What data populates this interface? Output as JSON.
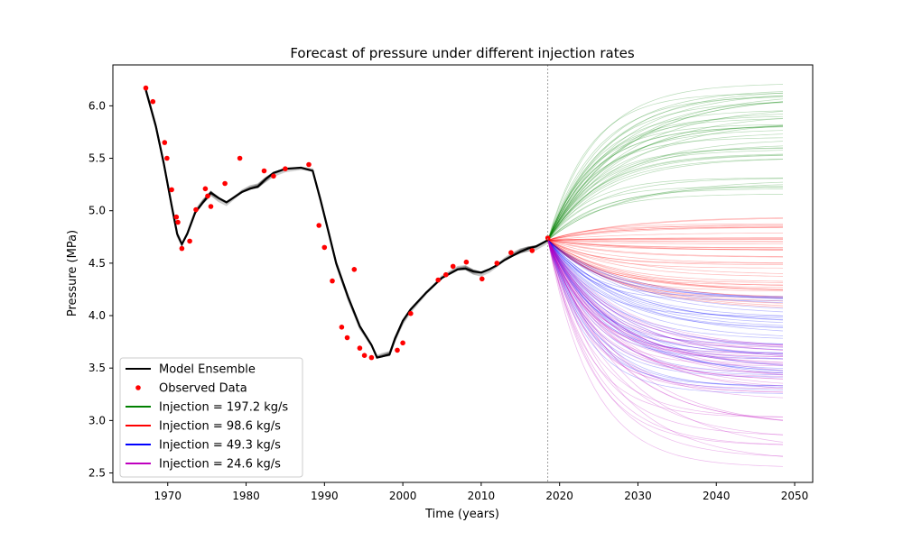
{
  "chart_data": {
    "type": "line",
    "title": "Forecast of pressure under different injection rates",
    "xlabel": "Time (years)",
    "ylabel": "Pressure (MPa)",
    "xlim": [
      1963.0,
      2052.3
    ],
    "ylim": [
      2.41,
      6.39
    ],
    "x_ticks": [
      1970,
      1980,
      1990,
      2000,
      2010,
      2020,
      2030,
      2040,
      2050
    ],
    "y_ticks": [
      2.5,
      3.0,
      3.5,
      4.0,
      4.5,
      5.0,
      5.5,
      6.0
    ],
    "grid": false,
    "legend": {
      "placement": "lower-left"
    },
    "forecast_start": 2018.5,
    "series": [
      {
        "name": "Model Ensemble",
        "color": "#000000",
        "kind": "line",
        "x": [
          1967.2,
          1968.5,
          1969.5,
          1970.5,
          1971.2,
          1971.8,
          1972.5,
          1973.5,
          1974.5,
          1975.5,
          1976.5,
          1977.5,
          1978.5,
          1979.5,
          1980.5,
          1981.5,
          1982.5,
          1983.5,
          1985.0,
          1987.0,
          1988.5,
          1989.5,
          1990.5,
          1991.5,
          1993.0,
          1994.5,
          1996.0,
          1996.7,
          1997.3,
          1998.3,
          1999.0,
          2000.0,
          2001.0,
          2003.0,
          2005.0,
          2007.0,
          2008.0,
          2009.0,
          2010.0,
          2011.0,
          2012.0,
          2013.0,
          2014.0,
          2015.0,
          2016.0,
          2017.0,
          2018.5
        ],
        "y": [
          6.15,
          5.8,
          5.45,
          5.05,
          4.78,
          4.68,
          4.78,
          4.98,
          5.08,
          5.17,
          5.12,
          5.08,
          5.13,
          5.18,
          5.21,
          5.23,
          5.3,
          5.36,
          5.4,
          5.41,
          5.38,
          5.1,
          4.8,
          4.5,
          4.18,
          3.9,
          3.72,
          3.6,
          3.61,
          3.63,
          3.78,
          3.95,
          4.06,
          4.22,
          4.36,
          4.44,
          4.45,
          4.42,
          4.41,
          4.44,
          4.48,
          4.53,
          4.57,
          4.61,
          4.64,
          4.66,
          4.72
        ]
      },
      {
        "name": "Observed Data",
        "color": "#ff0000",
        "kind": "points",
        "x": [
          1967.2,
          1968.1,
          1969.6,
          1969.9,
          1970.5,
          1971.1,
          1971.3,
          1971.8,
          1972.8,
          1973.6,
          1974.8,
          1975.1,
          1975.5,
          1977.3,
          1979.2,
          1982.3,
          1983.5,
          1985.0,
          1988.0,
          1989.3,
          1990.0,
          1991.0,
          1992.2,
          1992.9,
          1993.8,
          1994.5,
          1995.1,
          1996.0,
          1999.3,
          2000.0,
          2001.0,
          2004.5,
          2005.5,
          2006.4,
          2008.1,
          2010.1,
          2012.0,
          2013.8,
          2016.5,
          2018.5
        ],
        "y": [
          6.17,
          6.04,
          5.65,
          5.5,
          5.2,
          4.94,
          4.89,
          4.64,
          4.71,
          5.01,
          5.21,
          5.14,
          5.04,
          5.26,
          5.5,
          5.38,
          5.33,
          5.4,
          5.44,
          4.86,
          4.65,
          4.33,
          3.89,
          3.79,
          4.44,
          3.69,
          3.62,
          3.6,
          3.67,
          3.74,
          4.02,
          4.34,
          4.39,
          4.47,
          4.51,
          4.35,
          4.5,
          4.6,
          4.62,
          4.74
        ]
      },
      {
        "name": "Injection = 197.2 kg/s",
        "color": "#008000",
        "kind": "forecast",
        "x_end": 2048.5,
        "final_range": [
          5.15,
          6.22
        ]
      },
      {
        "name": "Injection = 98.6 kg/s",
        "color": "#ff0000",
        "kind": "forecast",
        "x_end": 2048.5,
        "final_range": [
          4.05,
          4.95
        ]
      },
      {
        "name": "Injection = 49.3 kg/s",
        "color": "#0000ff",
        "kind": "forecast",
        "x_end": 2048.5,
        "final_range": [
          3.25,
          4.18
        ]
      },
      {
        "name": "Injection = 24.6 kg/s",
        "color": "#bf00bf",
        "kind": "forecast",
        "x_end": 2048.5,
        "final_range": [
          2.55,
          3.75
        ]
      }
    ]
  }
}
